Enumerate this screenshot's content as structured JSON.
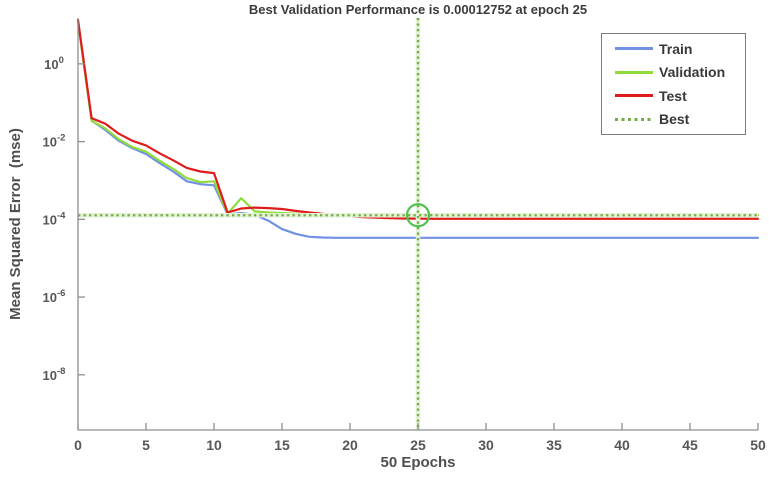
{
  "figure": {
    "background": "#ffffff",
    "axis_color": "#8f8f8f",
    "tick_text_color": "#565656",
    "title_color": "#3b3b3b"
  },
  "chart_data": {
    "type": "line",
    "title": "Best Validation Performance is 0.00012752 at epoch 25",
    "xlabel": "50 Epochs",
    "ylabel": "Mean Squared Error  (mse)",
    "y_scale": "log",
    "grid": false,
    "legend_position": "upper right",
    "xlim": [
      0,
      50
    ],
    "ylim_exponents": [
      -9.42,
      1.18
    ],
    "x_ticks": [
      0,
      5,
      10,
      15,
      20,
      25,
      30,
      35,
      40,
      45,
      50
    ],
    "y_ticks_exponents": [
      0,
      -2,
      -4,
      -6,
      -8
    ],
    "x": [
      0,
      1,
      2,
      3,
      4,
      5,
      6,
      7,
      8,
      9,
      10,
      11,
      12,
      13,
      14,
      15,
      16,
      17,
      18,
      19,
      20,
      21,
      22,
      23,
      24,
      25,
      26,
      27,
      28,
      29,
      30,
      31,
      32,
      33,
      34,
      35,
      36,
      37,
      38,
      39,
      40,
      41,
      42,
      43,
      44,
      45,
      46,
      47,
      48,
      49,
      50
    ],
    "series": [
      {
        "name": "Train",
        "color": "#7290e4",
        "style": "solid",
        "values": [
          13,
          0.035,
          0.02,
          0.0105,
          0.0068,
          0.0048,
          0.0028,
          0.0017,
          0.00095,
          0.0008,
          0.00075,
          0.000135,
          0.000145,
          0.00013,
          9.2e-05,
          5.6e-05,
          4.25e-05,
          3.55e-05,
          3.4e-05,
          3.35e-05,
          3.35e-05,
          3.35e-05,
          3.35e-05,
          3.35e-05,
          3.35e-05,
          3.35e-05,
          3.35e-05,
          3.35e-05,
          3.35e-05,
          3.35e-05,
          3.35e-05,
          3.35e-05,
          3.35e-05,
          3.35e-05,
          3.35e-05,
          3.35e-05,
          3.35e-05,
          3.35e-05,
          3.35e-05,
          3.35e-05,
          3.35e-05,
          3.35e-05,
          3.35e-05,
          3.35e-05,
          3.35e-05,
          3.35e-05,
          3.35e-05,
          3.35e-05,
          3.35e-05,
          3.35e-05,
          3.35e-05
        ]
      },
      {
        "name": "Validation",
        "color": "#8fdc3a",
        "style": "solid",
        "values": [
          12,
          0.034,
          0.022,
          0.0115,
          0.0072,
          0.0055,
          0.0032,
          0.002,
          0.00115,
          0.0009,
          0.00095,
          0.00014,
          0.00035,
          0.00016,
          0.00015,
          0.000145,
          0.00014,
          0.000136,
          0.000133,
          0.000131,
          0.00013,
          0.000129,
          0.0001285,
          0.000128,
          0.0001277,
          0.00012752,
          0.0001276,
          0.0001276,
          0.0001276,
          0.0001276,
          0.0001276,
          0.0001276,
          0.0001276,
          0.0001276,
          0.0001276,
          0.0001276,
          0.0001276,
          0.0001276,
          0.0001276,
          0.0001276,
          0.0001276,
          0.0001276,
          0.0001276,
          0.0001276,
          0.0001276,
          0.0001276,
          0.0001276,
          0.0001276,
          0.0001276,
          0.0001276,
          0.0001276
        ]
      },
      {
        "name": "Test",
        "color": "#df1b1b",
        "style": "solid",
        "values": [
          13.5,
          0.04,
          0.029,
          0.016,
          0.0105,
          0.008,
          0.005,
          0.0033,
          0.0021,
          0.0017,
          0.00155,
          0.00015,
          0.00019,
          0.0002,
          0.000195,
          0.000185,
          0.000165,
          0.00015,
          0.000138,
          0.000128,
          0.00012,
          0.000114,
          0.00011,
          0.000107,
          0.000105,
          0.000104,
          0.000103,
          0.000103,
          0.000103,
          0.000103,
          0.000103,
          0.000103,
          0.000103,
          0.000103,
          0.000103,
          0.000103,
          0.000103,
          0.000103,
          0.000103,
          0.000103,
          0.000103,
          0.000103,
          0.000103,
          0.000103,
          0.000103,
          0.000103,
          0.000103,
          0.000103,
          0.000103,
          0.000103,
          0.000103
        ]
      }
    ],
    "best": {
      "label": "Best",
      "value": 0.00012752,
      "epoch": 25,
      "line_color": "#74ad43",
      "halo_color": "#e3f1d6",
      "marker_color": "#52c052"
    },
    "legend_items": [
      {
        "label": "Train",
        "color": "#7290e4",
        "style": "solid"
      },
      {
        "label": "Validation",
        "color": "#8fdc3a",
        "style": "solid"
      },
      {
        "label": "Test",
        "color": "#df1b1b",
        "style": "solid"
      },
      {
        "label": "Best",
        "color": "#74ad43",
        "style": "dotted"
      }
    ]
  }
}
